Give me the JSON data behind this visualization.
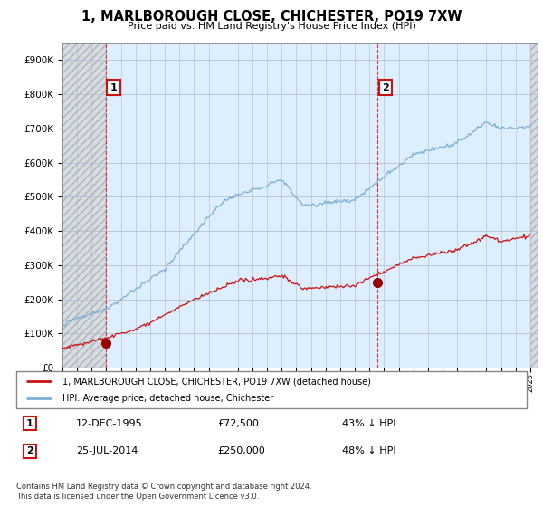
{
  "title": "1, MARLBOROUGH CLOSE, CHICHESTER, PO19 7XW",
  "subtitle": "Price paid vs. HM Land Registry's House Price Index (HPI)",
  "legend_line1": "1, MARLBOROUGH CLOSE, CHICHESTER, PO19 7XW (detached house)",
  "legend_line2": "HPI: Average price, detached house, Chichester",
  "transaction1_label": "1",
  "transaction1_date": "12-DEC-1995",
  "transaction1_price": "£72,500",
  "transaction1_info": "43% ↓ HPI",
  "transaction2_label": "2",
  "transaction2_date": "25-JUL-2014",
  "transaction2_price": "£250,000",
  "transaction2_info": "48% ↓ HPI",
  "footer": "Contains HM Land Registry data © Crown copyright and database right 2024.\nThis data is licensed under the Open Government Licence v3.0.",
  "hpi_color": "#7bafd4",
  "price_color": "#cc1111",
  "marker_color": "#990000",
  "vline_color": "#dd3333",
  "chart_bg": "#ddeeff",
  "hatch_bg": "#e8e8e8",
  "grid_color": "#aaaacc",
  "ylim": [
    0,
    950000
  ],
  "yticks": [
    0,
    100000,
    200000,
    300000,
    400000,
    500000,
    600000,
    700000,
    800000,
    900000
  ],
  "transaction1_x": 1995.95,
  "transaction1_y": 72500,
  "transaction2_x": 2014.56,
  "transaction2_y": 250000,
  "xlim_left": 1993.0,
  "xlim_right": 2025.5
}
